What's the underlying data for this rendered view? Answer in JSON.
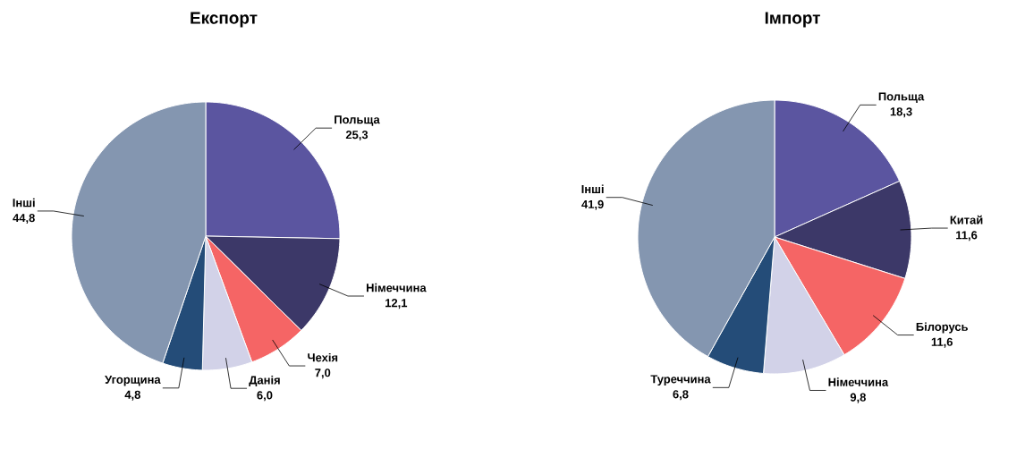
{
  "chart_data": [
    {
      "type": "pie",
      "title": "Експорт",
      "categories": [
        "Польща",
        "Німеччина",
        "Чехія",
        "Данія",
        "Угорщина",
        "Інші"
      ],
      "values": [
        25.3,
        12.1,
        7.0,
        6.0,
        4.8,
        44.8
      ],
      "value_labels": [
        "25,3",
        "12,1",
        "7,0",
        "6,0",
        "4,8",
        "44,8"
      ],
      "colors": [
        "#5b55a0",
        "#3c3868",
        "#f56565",
        "#d2d2e8",
        "#244c78",
        "#8496b0"
      ]
    },
    {
      "type": "pie",
      "title": "Імпорт",
      "categories": [
        "Польща",
        "Китай",
        "Білорусь",
        "Німеччина",
        "Туреччина",
        "Інші"
      ],
      "values": [
        18.3,
        11.6,
        11.6,
        9.8,
        6.8,
        41.9
      ],
      "value_labels": [
        "18,3",
        "11,6",
        "11,6",
        "9,8",
        "6,8",
        "41,9"
      ],
      "colors": [
        "#5b55a0",
        "#3c3868",
        "#f56565",
        "#d2d2e8",
        "#244c78",
        "#8496b0"
      ]
    }
  ]
}
